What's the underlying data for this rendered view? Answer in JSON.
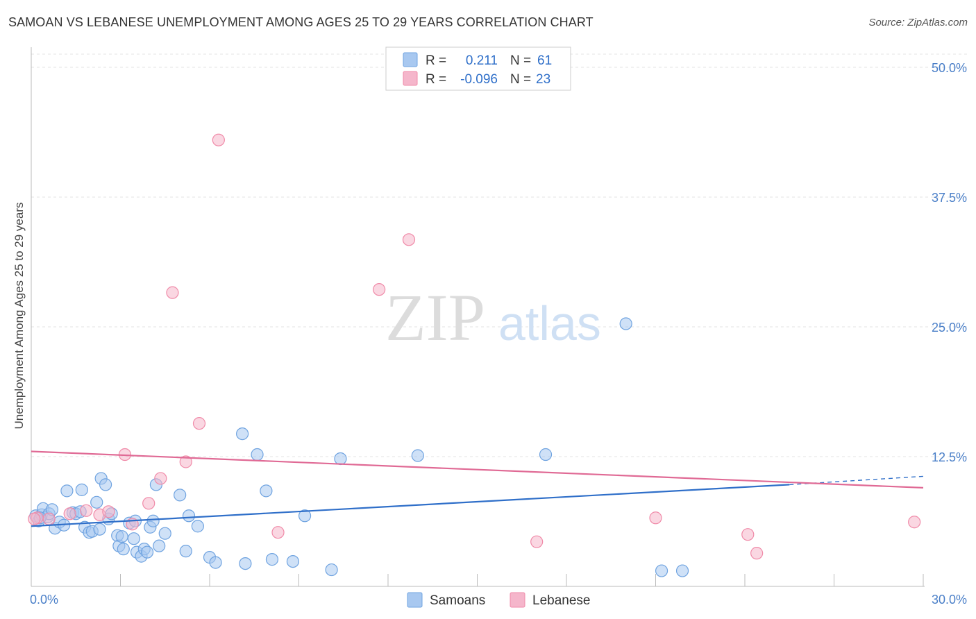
{
  "header": {
    "title": "SAMOAN VS LEBANESE UNEMPLOYMENT AMONG AGES 25 TO 29 YEARS CORRELATION CHART",
    "source": "Source: ZipAtlas.com"
  },
  "watermark": {
    "zip": "ZIP",
    "atlas": "atlas"
  },
  "legend": {
    "r_label": "R =",
    "n_label": "N =",
    "rows": [
      {
        "r": "0.211",
        "n": "61",
        "color": "#a8c8f0"
      },
      {
        "r": "-0.096",
        "n": "23",
        "color": "#f5b6cb"
      }
    ]
  },
  "chart_data": {
    "type": "scatter",
    "title": "SAMOAN VS LEBANESE UNEMPLOYMENT AMONG AGES 25 TO 29 YEARS CORRELATION CHART",
    "xlabel": "",
    "ylabel": "Unemployment Among Ages 25 to 29 years",
    "xlim": [
      0,
      30
    ],
    "ylim": [
      0,
      50
    ],
    "x_tick_labels": [
      {
        "value": 0,
        "label": "0.0%"
      },
      {
        "value": 30,
        "label": "30.0%"
      }
    ],
    "y_tick_labels": [
      {
        "value": 12.5,
        "label": "12.5%"
      },
      {
        "value": 25,
        "label": "25.0%"
      },
      {
        "value": 37.5,
        "label": "37.5%"
      },
      {
        "value": 50,
        "label": "50.0%"
      }
    ],
    "grid": true,
    "series": [
      {
        "name": "Samoans",
        "color": "#6fa3e0",
        "fill": "#a8c8f0",
        "trend": {
          "x": [
            0,
            25.5
          ],
          "y": [
            5.8,
            9.8
          ],
          "dashed_to": [
            30,
            10.6
          ],
          "color": "#2f6fc9"
        },
        "points": [
          [
            0.15,
            6.8
          ],
          [
            0.25,
            6.3
          ],
          [
            0.35,
            6.9
          ],
          [
            0.4,
            7.5
          ],
          [
            0.55,
            6.7
          ],
          [
            0.6,
            7.0
          ],
          [
            0.7,
            7.4
          ],
          [
            0.8,
            5.6
          ],
          [
            0.95,
            6.2
          ],
          [
            1.1,
            5.9
          ],
          [
            1.2,
            9.2
          ],
          [
            1.4,
            7.1
          ],
          [
            1.5,
            7.0
          ],
          [
            1.65,
            7.2
          ],
          [
            1.7,
            9.3
          ],
          [
            1.8,
            5.7
          ],
          [
            1.95,
            5.2
          ],
          [
            2.05,
            5.3
          ],
          [
            2.2,
            8.1
          ],
          [
            2.3,
            5.5
          ],
          [
            2.35,
            10.4
          ],
          [
            2.5,
            9.8
          ],
          [
            2.6,
            6.5
          ],
          [
            2.7,
            7.0
          ],
          [
            2.9,
            4.9
          ],
          [
            2.95,
            3.9
          ],
          [
            3.05,
            4.8
          ],
          [
            3.1,
            3.6
          ],
          [
            3.3,
            6.1
          ],
          [
            3.45,
            4.6
          ],
          [
            3.5,
            6.3
          ],
          [
            3.55,
            3.3
          ],
          [
            3.7,
            2.9
          ],
          [
            3.8,
            3.6
          ],
          [
            3.9,
            3.3
          ],
          [
            4.0,
            5.7
          ],
          [
            4.1,
            6.3
          ],
          [
            4.2,
            9.8
          ],
          [
            4.3,
            3.9
          ],
          [
            4.5,
            5.1
          ],
          [
            5.0,
            8.8
          ],
          [
            5.2,
            3.4
          ],
          [
            5.3,
            6.8
          ],
          [
            5.6,
            5.8
          ],
          [
            6.0,
            2.8
          ],
          [
            6.2,
            2.3
          ],
          [
            7.1,
            14.7
          ],
          [
            7.2,
            2.2
          ],
          [
            7.6,
            12.7
          ],
          [
            7.9,
            9.2
          ],
          [
            8.1,
            2.6
          ],
          [
            8.8,
            2.4
          ],
          [
            9.2,
            6.8
          ],
          [
            10.1,
            1.6
          ],
          [
            10.4,
            12.3
          ],
          [
            13.0,
            12.6
          ],
          [
            17.3,
            12.7
          ],
          [
            20.0,
            25.3
          ],
          [
            21.2,
            1.5
          ],
          [
            21.9,
            1.5
          ],
          [
            0.3,
            6.6
          ]
        ]
      },
      {
        "name": "Lebanese",
        "color": "#f08aa8",
        "fill": "#f5b6cb",
        "trend": {
          "x": [
            0,
            30
          ],
          "y": [
            13.0,
            9.5
          ],
          "color": "#e06a95"
        },
        "points": [
          [
            0.2,
            6.6
          ],
          [
            0.6,
            6.5
          ],
          [
            1.3,
            7.0
          ],
          [
            1.85,
            7.3
          ],
          [
            2.3,
            6.9
          ],
          [
            2.6,
            7.2
          ],
          [
            3.15,
            12.7
          ],
          [
            3.4,
            6.0
          ],
          [
            3.95,
            8.0
          ],
          [
            4.35,
            10.4
          ],
          [
            4.75,
            28.3
          ],
          [
            5.2,
            12.0
          ],
          [
            5.65,
            15.7
          ],
          [
            6.3,
            43.0
          ],
          [
            8.3,
            5.2
          ],
          [
            11.7,
            28.6
          ],
          [
            12.7,
            33.4
          ],
          [
            17.0,
            4.3
          ],
          [
            21.0,
            6.6
          ],
          [
            24.1,
            5.0
          ],
          [
            24.4,
            3.2
          ],
          [
            29.7,
            6.2
          ],
          [
            0.1,
            6.5
          ]
        ]
      }
    ]
  }
}
